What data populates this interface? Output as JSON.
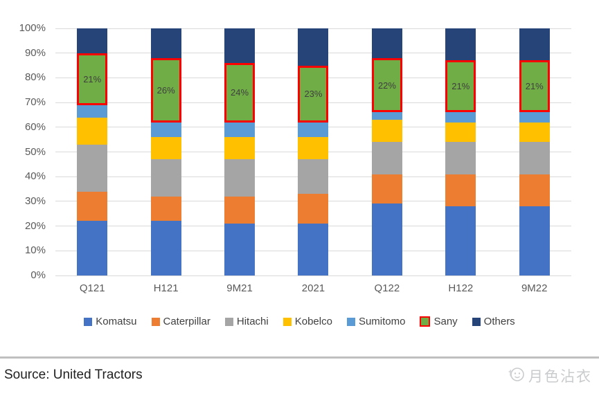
{
  "chart_data": {
    "type": "bar",
    "stacked": true,
    "title": "",
    "xlabel": "",
    "ylabel": "",
    "ylim": [
      0,
      100
    ],
    "grid": true,
    "legend_position": "bottom",
    "y_ticks": [
      "100%",
      "90%",
      "80%",
      "70%",
      "60%",
      "50%",
      "40%",
      "30%",
      "20%",
      "10%",
      "0%"
    ],
    "categories": [
      "Q121",
      "H121",
      "9M21",
      "2021",
      "Q122",
      "H122",
      "9M22"
    ],
    "series": [
      {
        "name": "Komatsu",
        "color": "#4472C4",
        "values": [
          22,
          22,
          21,
          21,
          29,
          28,
          28
        ]
      },
      {
        "name": "Caterpillar",
        "color": "#ED7D31",
        "values": [
          12,
          10,
          11,
          12,
          12,
          13,
          13
        ]
      },
      {
        "name": "Hitachi",
        "color": "#A5A5A5",
        "values": [
          19,
          15,
          15,
          14,
          13,
          13,
          13
        ]
      },
      {
        "name": "Kobelco",
        "color": "#FFC000",
        "values": [
          11,
          9,
          9,
          9,
          9,
          8,
          8
        ]
      },
      {
        "name": "Sumitomo",
        "color": "#5B9BD5",
        "values": [
          5,
          6,
          6,
          6,
          3,
          4,
          4
        ]
      },
      {
        "name": "Sany",
        "color": "#70AD47",
        "values": [
          21,
          26,
          24,
          23,
          22,
          21,
          21
        ],
        "highlighted": true,
        "border_color": "#FF0000",
        "data_labels": [
          "21%",
          "26%",
          "24%",
          "23%",
          "22%",
          "21%",
          "21%"
        ]
      },
      {
        "name": "Others",
        "color": "#264478",
        "values": [
          10,
          12,
          14,
          15,
          12,
          13,
          13
        ]
      }
    ],
    "colors": {
      "gridline": "#D9D9D9",
      "axis_text": "#595959",
      "data_label_text": "#3F3F3F",
      "highlight_border": "#FF0000"
    }
  },
  "footer": {
    "source_label": "Source: United Tractors"
  },
  "watermark": {
    "text": "月色沾衣"
  }
}
